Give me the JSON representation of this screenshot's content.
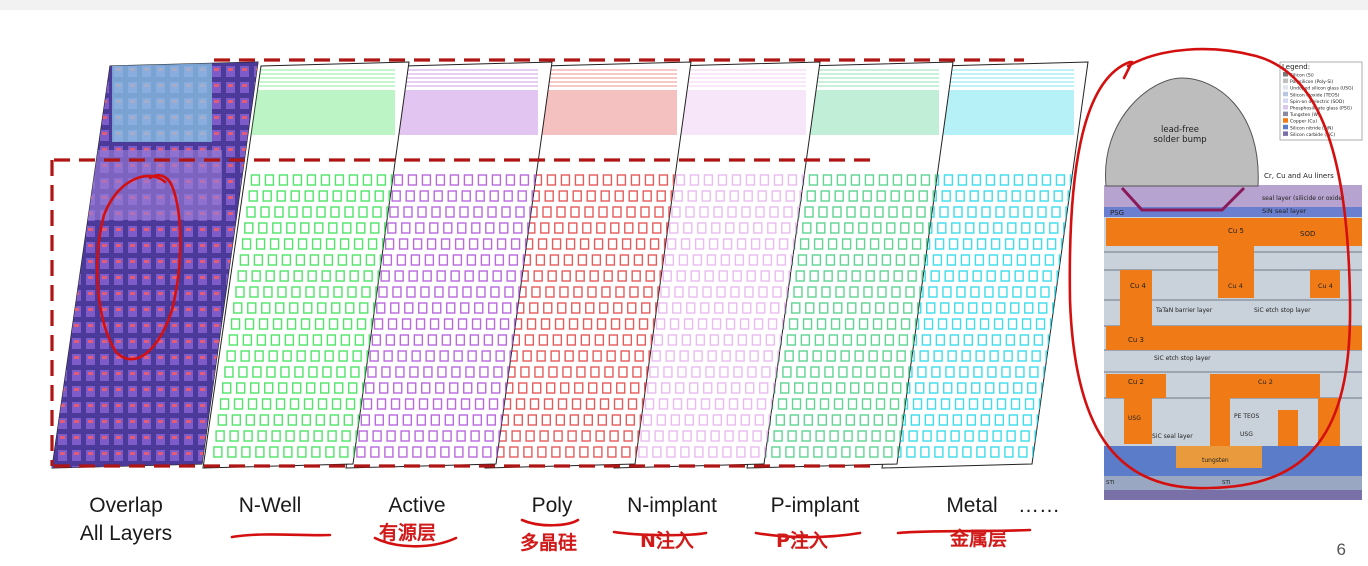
{
  "layers": [
    {
      "label": "Overlap\nAll Layers",
      "color": "#6a3fb0"
    },
    {
      "label": "N-Well",
      "color": "#3ee05a"
    },
    {
      "label": "Active",
      "color": "#b05ad8"
    },
    {
      "label": "Poly",
      "color": "#e04a4a"
    },
    {
      "label": "N-implant",
      "color": "#e8b4ee"
    },
    {
      "label": "P-implant",
      "color": "#4ecf8a"
    },
    {
      "label": "Metal",
      "color": "#2ad8e8"
    }
  ],
  "ellipsis": "……",
  "annotations": {
    "active_cn": "有源层",
    "poly_cn": "多晶硅",
    "nimplant_cn": "N注入",
    "pimplant_cn": "P注入",
    "metal_cn": "金属层"
  },
  "page_number": "6",
  "cross_section": {
    "legend_title": "Legend:",
    "legend_items": [
      "Silicon (Si)",
      "Polysilicon (Poly-Si)",
      "Undoped silicon glass (USG)",
      "Silicon dioxide (TEOS)",
      "Spin-on dielectric (SOD)",
      "Phosphosilicate glass (PSG)",
      "Tungsten (W)",
      "Copper (Cu)",
      "Silicon nitride (SiN)",
      "Silicon carbide (SiC)"
    ],
    "bump_label": "lead-free\nsolder bump",
    "liners_label": "Cr, Cu and Au liners",
    "seal_label": "seal layer (silicide or oxide)",
    "psg": "PSG",
    "sin_seal": "SiN seal layer",
    "sod": "SOD",
    "cu5": "Cu 5",
    "cu4": "Cu 4",
    "tatan": "TaTaN barrier layer",
    "sic1": "SiC etch stop layer",
    "cu3": "Cu 3",
    "sic2": "SiC etch stop layer",
    "cu2": "Cu 2",
    "teos": "PE TEOS",
    "usg": "USG",
    "sic_seal": "SiC seal layer",
    "tungsten": "tungsten",
    "sti": "STI"
  }
}
